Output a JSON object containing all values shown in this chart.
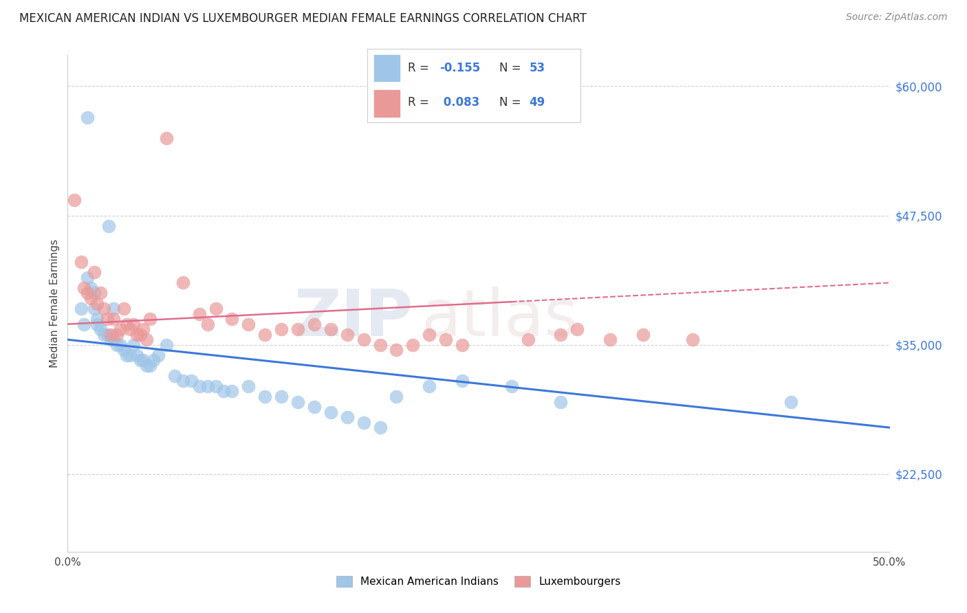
{
  "title": "MEXICAN AMERICAN INDIAN VS LUXEMBOURGER MEDIAN FEMALE EARNINGS CORRELATION CHART",
  "source": "Source: ZipAtlas.com",
  "ylabel": "Median Female Earnings",
  "yticks": [
    22500,
    35000,
    47500,
    60000
  ],
  "ytick_labels": [
    "$22,500",
    "$35,000",
    "$47,500",
    "$60,000"
  ],
  "xlim": [
    0.0,
    0.5
  ],
  "ylim": [
    15000,
    63000
  ],
  "legend_label_blue": "Mexican American Indians",
  "legend_label_pink": "Luxembourgers",
  "blue_color": "#9fc5e8",
  "pink_color": "#ea9999",
  "blue_line_color": "#3c78d8",
  "pink_line_color": "#e06c8a",
  "grid_color": "#cccccc",
  "blue_x": [
    0.012,
    0.025,
    0.008,
    0.01,
    0.012,
    0.014,
    0.016,
    0.016,
    0.018,
    0.018,
    0.02,
    0.022,
    0.024,
    0.026,
    0.028,
    0.028,
    0.03,
    0.032,
    0.034,
    0.036,
    0.038,
    0.04,
    0.042,
    0.044,
    0.046,
    0.048,
    0.05,
    0.052,
    0.055,
    0.06,
    0.065,
    0.07,
    0.075,
    0.08,
    0.085,
    0.09,
    0.095,
    0.1,
    0.11,
    0.12,
    0.13,
    0.14,
    0.15,
    0.16,
    0.17,
    0.18,
    0.19,
    0.2,
    0.22,
    0.24,
    0.27,
    0.3,
    0.44
  ],
  "blue_y": [
    57000,
    46500,
    38500,
    37000,
    41500,
    40500,
    40000,
    38500,
    37500,
    37000,
    36500,
    36000,
    36000,
    35500,
    35500,
    38500,
    35000,
    35000,
    34500,
    34000,
    34000,
    35000,
    34000,
    33500,
    33500,
    33000,
    33000,
    33500,
    34000,
    35000,
    32000,
    31500,
    31500,
    31000,
    31000,
    31000,
    30500,
    30500,
    31000,
    30000,
    30000,
    29500,
    29000,
    28500,
    28000,
    27500,
    27000,
    30000,
    31000,
    31500,
    31000,
    29500,
    29500
  ],
  "pink_x": [
    0.004,
    0.008,
    0.01,
    0.012,
    0.014,
    0.016,
    0.018,
    0.02,
    0.022,
    0.024,
    0.026,
    0.028,
    0.03,
    0.032,
    0.034,
    0.036,
    0.038,
    0.04,
    0.042,
    0.044,
    0.046,
    0.048,
    0.05,
    0.06,
    0.07,
    0.08,
    0.085,
    0.09,
    0.1,
    0.11,
    0.12,
    0.13,
    0.14,
    0.15,
    0.16,
    0.17,
    0.18,
    0.19,
    0.2,
    0.21,
    0.22,
    0.23,
    0.24,
    0.28,
    0.3,
    0.33,
    0.35,
    0.38,
    0.31
  ],
  "pink_y": [
    49000,
    43000,
    40500,
    40000,
    39500,
    42000,
    39000,
    40000,
    38500,
    37500,
    36000,
    37500,
    36000,
    36500,
    38500,
    37000,
    36500,
    37000,
    36000,
    36000,
    36500,
    35500,
    37500,
    55000,
    41000,
    38000,
    37000,
    38500,
    37500,
    37000,
    36000,
    36500,
    36500,
    37000,
    36500,
    36000,
    35500,
    35000,
    34500,
    35000,
    36000,
    35500,
    35000,
    35500,
    36000,
    35500,
    36000,
    35500,
    36500
  ]
}
